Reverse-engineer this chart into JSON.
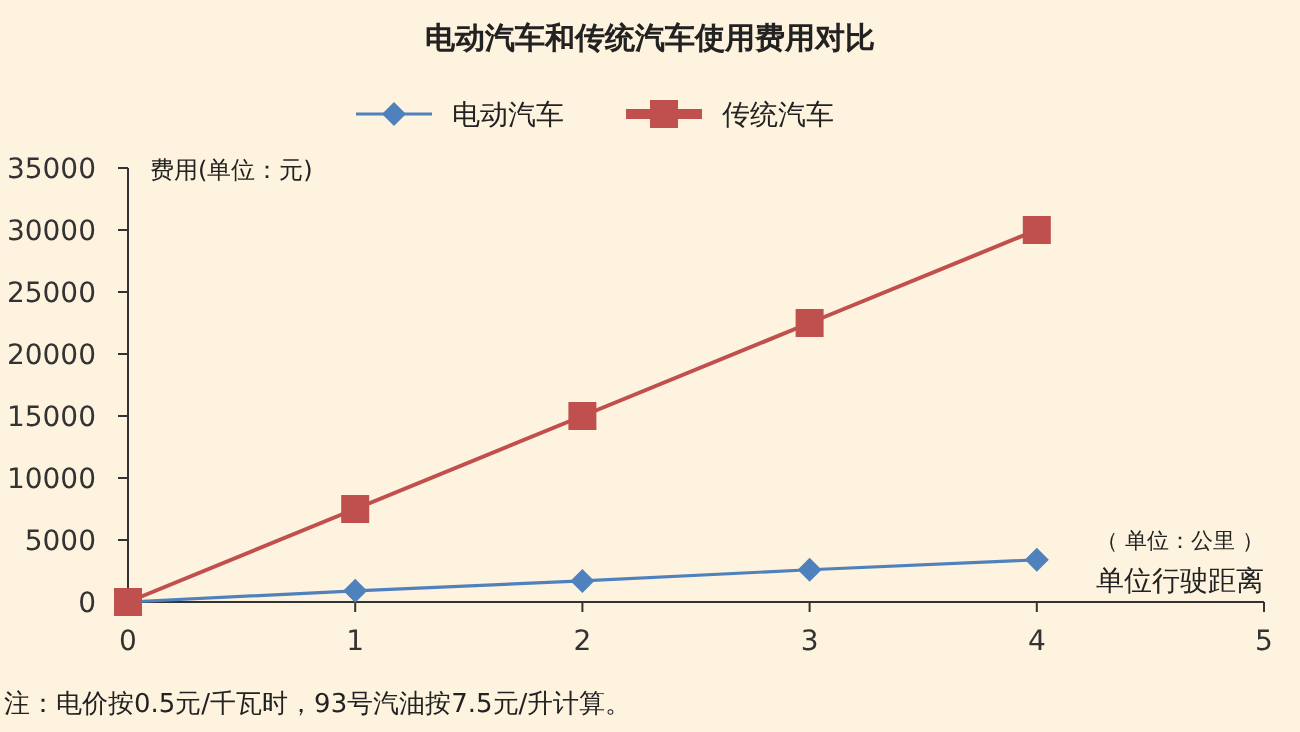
{
  "chart_data": {
    "type": "line",
    "title": "电动汽车和传统汽车使用费用对比",
    "ylabel": "费用(单位：元)",
    "xlabel": "单位行驶距离",
    "annotations": [
      "（ 单位：公里 ）",
      "注：电价按0.5元/千瓦时，93号汽油按7.5元/升计算。"
    ],
    "x": [
      0,
      1,
      2,
      3,
      4
    ],
    "xlim": [
      0,
      5
    ],
    "xticks": [
      0,
      1,
      2,
      3,
      4,
      5
    ],
    "ylim": [
      0,
      35000
    ],
    "yticks": [
      0,
      5000,
      10000,
      15000,
      20000,
      25000,
      30000,
      35000
    ],
    "legend": "top",
    "series": [
      {
        "name": "电动汽车",
        "color": "#4f81bd",
        "marker": "diamond",
        "values": [
          0,
          900,
          1700,
          2600,
          3400
        ]
      },
      {
        "name": "传统汽车",
        "color": "#c0504d",
        "marker": "square",
        "values": [
          0,
          7500,
          15000,
          22500,
          30000
        ]
      }
    ]
  }
}
